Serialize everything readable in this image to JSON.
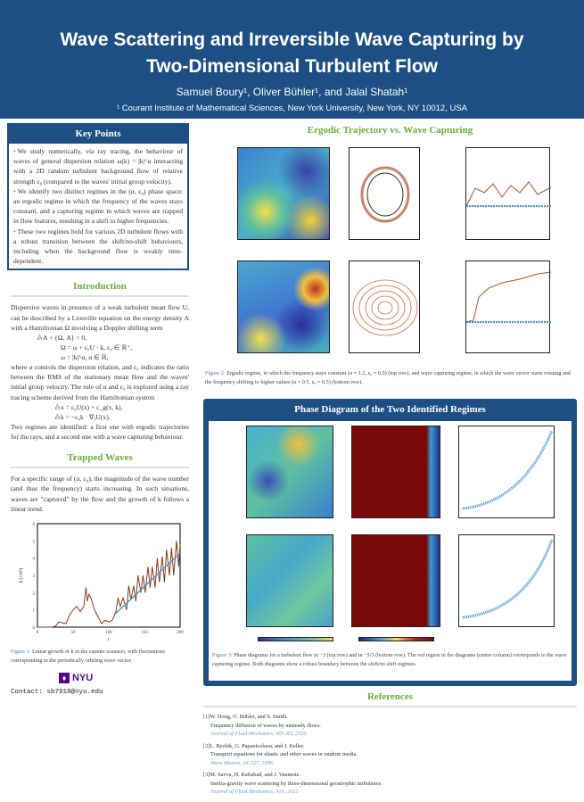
{
  "header": {
    "title_line1": "Wave Scattering and Irreversible Wave Capturing by",
    "title_line2": "Two-Dimensional Turbulent Flow",
    "authors": "Samuel Boury¹, Oliver Bühler¹, and Jalal Shatah¹",
    "affiliation": "¹ Courant Institute of Mathematical Sciences, New York University, New York, NY 10012, USA"
  },
  "key_points": {
    "heading": "Key Points",
    "items": [
      "We study numerically, via ray tracing, the behaviour of waves of general dispersion relation ω(k) = |k|^α interacting with a 2D random turbulent background flow of relative strength ε₀ (compared to the waves' initial group velocity).",
      "We identify two distinct regimes in the (α, ε₀) phase space: an ergodic regime in which the frequency of the waves stays constant, and a capturing regime in which waves are trapped in flow features, resulting in a shift to higher frequencies.",
      "These two regimes hold for various 2D turbulent flows with a robust transition between the shift/no-shift behaviours, including when the background flow is weakly time-dependent."
    ]
  },
  "introduction": {
    "heading": "Introduction",
    "p1": "Dispersive waves in presence of a weak turbulent mean flow U, can be described by a Liouville equation on the energy density A with a Hamiltonian Ω involving a Doppler shifting term",
    "eq1": "∂ₜA + {Ω, A} = 0,",
    "eq2": "Ω = ω + ε₀U · k,   ε₀ ∈ ℝ⁺,",
    "eq3": "ω = |k|^α,   α ∈ ℝ,",
    "p2": "where α controls the dispersion relation, and ε₀ indicates the ratio between the RMS of the stationary mean flow and the waves' initial group velocity. The role of α and ε₀ is explored using a ray tracing scheme derived from the Hamiltonian system",
    "eq4": "∂ₜx = ε₀U(x) + c_g(x, k),",
    "eq5": "∂ₜk = −ε₀k · ∇ₓU(x).",
    "p3": "Two regimes are identified: a first one with ergodic trajectories for the rays, and a second one with a wave capturing behaviour."
  },
  "trapped": {
    "heading": "Trapped Waves",
    "p": "For a specific range of (α, ε₀), the magnitude of the wave number (and thus the frequency) starts increasing. In such situations, waves are \"captured\" by the flow and the growth of k follows a linear trend.",
    "caption_label": "Figure 1:",
    "caption": "Linear growth of k in the capture scenario, with fluctuations corresponding to the periodically orbiting wave vector."
  },
  "chart_data": {
    "type": "line",
    "xlabel": "t",
    "ylabel": "k (×10²)",
    "xlim": [
      0,
      200
    ],
    "ylim": [
      0,
      6
    ],
    "xticks": [
      "0",
      "50",
      "100",
      "150",
      "200"
    ],
    "yticks": [
      "0",
      "1",
      "2",
      "3",
      "4",
      "5",
      "6"
    ],
    "series": [
      {
        "color": "#8b3a1a",
        "x": [
          0,
          20,
          25,
          30,
          35,
          40,
          45,
          50,
          55,
          60,
          65,
          68,
          70,
          72,
          75,
          80,
          85,
          90,
          95,
          100,
          105,
          110,
          113,
          116,
          120,
          125,
          128,
          131,
          135,
          138,
          141,
          145,
          148,
          151,
          155,
          158,
          161,
          165,
          168,
          171,
          175,
          178,
          181,
          185,
          188,
          191,
          195,
          198,
          200
        ],
        "y": [
          0,
          0,
          0.05,
          0.3,
          0.25,
          0.2,
          0.7,
          1.0,
          1.2,
          0.9,
          1.2,
          2.3,
          1.5,
          1.9,
          1.7,
          1.0,
          0.6,
          0.2,
          0.4,
          0.3,
          0.4,
          0.9,
          1.7,
          1.2,
          1.7,
          1.0,
          2.4,
          1.6,
          2.4,
          1.5,
          3.0,
          2.0,
          3.0,
          2.0,
          3.5,
          2.3,
          3.5,
          2.3,
          4.0,
          2.6,
          4.1,
          2.6,
          4.5,
          3.0,
          4.6,
          3.0,
          5.0,
          3.5,
          4.8
        ]
      },
      {
        "color": "#3a8fd6",
        "x": [
          110,
          200
        ],
        "y": [
          0.8,
          4.3
        ]
      }
    ]
  },
  "figure2": {
    "heading": "Ergodic Trajectory vs. Wave Capturing",
    "caption_label": "Figure 2:",
    "caption": "Ergodic regime, in which the frequency stays constant (α = 1.2, ε₀ = 0.5) (top row), and wave capturing regime, in which the wave vector starts rotating and the frequency shifting to higher values (α = 0.5, ε₀ = 0.5) (bottom row)."
  },
  "figure3": {
    "heading": "Phase Diagram of the Two Identified Regimes",
    "caption_label": "Figure 3:",
    "caption": "Phase diagrams for a turbulent flow in −3 (top row) and in −5/3 (bottom row). The red region in the diagrams (center column) corresponds to the wave capturing regime. Both diagrams show a robust boundary between the shift/no shift regimes."
  },
  "references": {
    "heading": "References",
    "items": [
      {
        "n": "[1]",
        "authors": "W. Dong, O. Bühler, and S. Smith.",
        "title": "Frequency diffusion of waves by unsteady flows.",
        "journal": "Journal of Fluid Mechanics, 905:R3, 2020."
      },
      {
        "n": "[2]",
        "authors": "L. Ryzhik, G. Papanicolaou, and J. Keller.",
        "title": "Transport equations for elastic and other waves in random media.",
        "journal": "Wave Motion, 24:327, 1996."
      },
      {
        "n": "[3]",
        "authors": "M. Savva, H. Kafiabad, and J. Vanneste.",
        "title": "Inertia-gravity wave scattering by three-dimensional geostrophic turbulence.",
        "journal": "Journal of Fluid Mechanics, 916, 2021."
      }
    ]
  },
  "footer": {
    "logo": "NYU",
    "contact": "Contact: sb7918@nyu.edu"
  },
  "colors": {
    "header": "#1d4f84",
    "section": "#6aab3a",
    "nyu": "#57068c"
  }
}
